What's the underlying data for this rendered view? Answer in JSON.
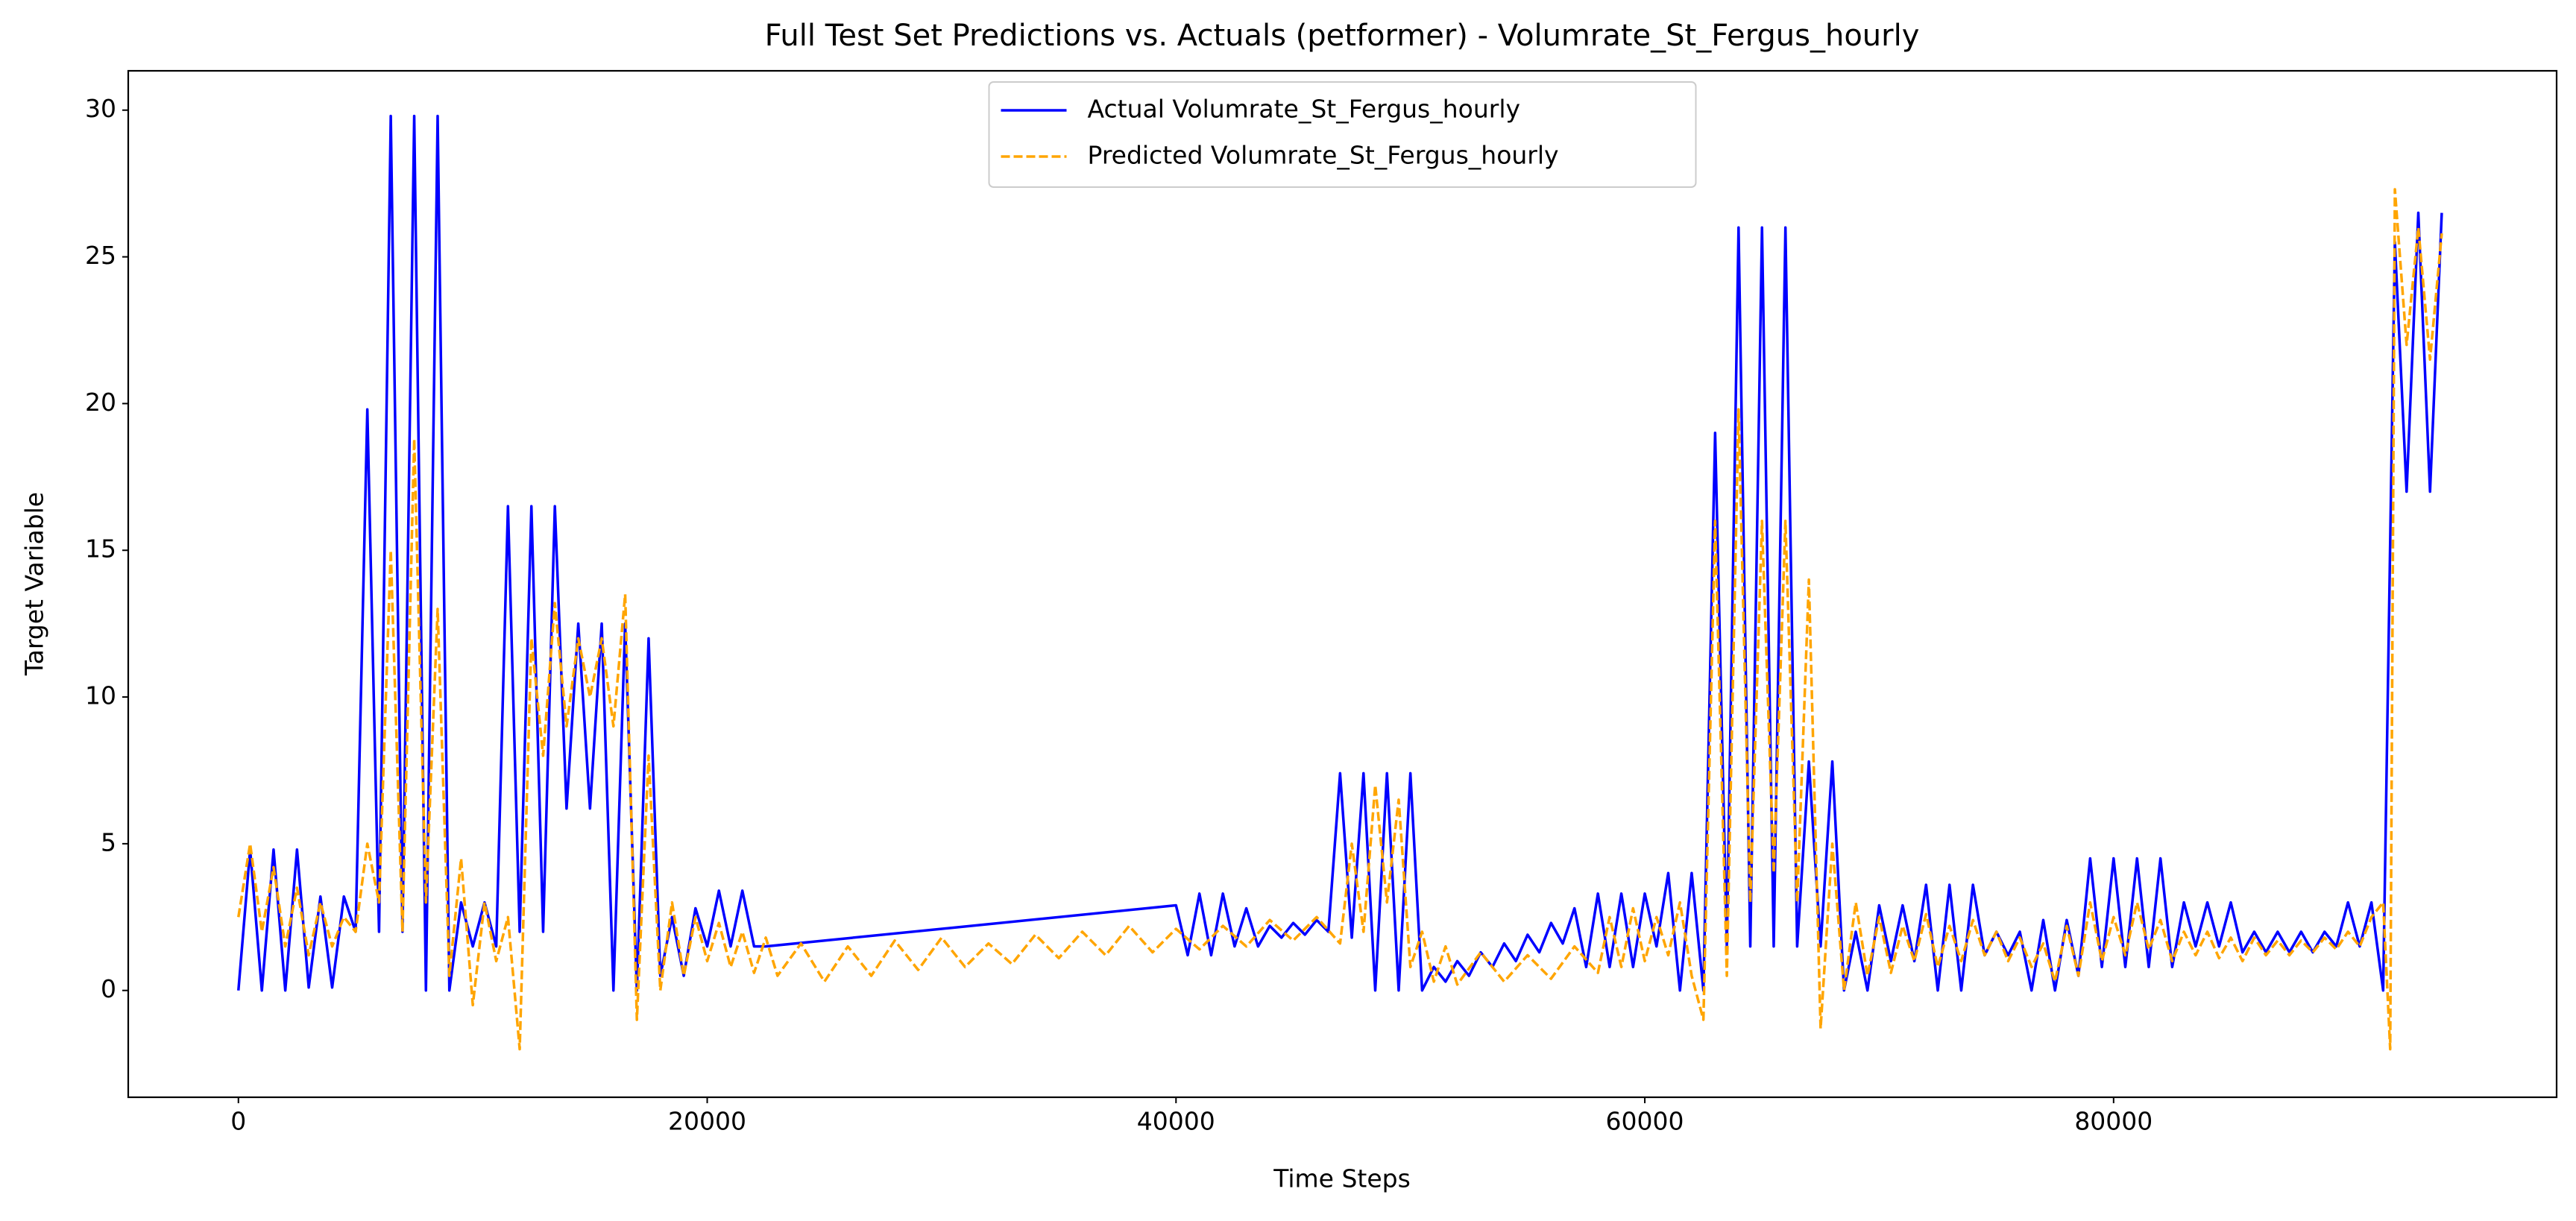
{
  "chart_data": {
    "type": "line",
    "title": "Full Test Set Predictions vs. Actuals (petformer) - Volumrate_St_Fergus_hourly",
    "xlabel": "Time Steps",
    "ylabel": "Target Variable",
    "xlim": [
      -4700,
      98900
    ],
    "ylim": [
      -3.64,
      31.34
    ],
    "xticks": [
      0,
      20000,
      40000,
      60000,
      80000
    ],
    "yticks": [
      0,
      5,
      10,
      15,
      20,
      25,
      30
    ],
    "grid": false,
    "legend": "upper center",
    "series": [
      {
        "name": "Actual Volumrate_St_Fergus_hourly",
        "color": "#0000ff",
        "style": "solid",
        "x": [
          0,
          500,
          1000,
          1500,
          2000,
          2500,
          3000,
          3500,
          4000,
          4500,
          5000,
          5500,
          6000,
          6500,
          7000,
          7500,
          8000,
          8500,
          9000,
          9500,
          10000,
          10500,
          11000,
          11500,
          12000,
          12500,
          13000,
          13500,
          14000,
          14500,
          15000,
          15500,
          16000,
          16500,
          17000,
          17500,
          18000,
          18500,
          19000,
          19500,
          20000,
          20500,
          21000,
          21500,
          22000,
          22500,
          40000,
          40500,
          41000,
          41500,
          42000,
          42500,
          43000,
          43500,
          44000,
          44500,
          45000,
          45500,
          46000,
          46500,
          47000,
          47500,
          48000,
          48500,
          49000,
          49500,
          50000,
          50500,
          51000,
          51500,
          52000,
          52500,
          53000,
          53500,
          54000,
          54500,
          55000,
          55500,
          56000,
          56500,
          57000,
          57500,
          58000,
          58500,
          59000,
          59500,
          60000,
          60500,
          61000,
          61500,
          62000,
          62500,
          63000,
          63500,
          64000,
          64500,
          65000,
          65500,
          66000,
          66500,
          67000,
          67500,
          68000,
          68500,
          69000,
          69500,
          70000,
          70500,
          71000,
          71500,
          72000,
          72500,
          73000,
          73500,
          74000,
          74500,
          75000,
          75500,
          76000,
          76500,
          77000,
          77500,
          78000,
          78500,
          79000,
          79500,
          80000,
          80500,
          81000,
          81500,
          82000,
          82500,
          83000,
          83500,
          84000,
          84500,
          85000,
          85500,
          86000,
          86500,
          87000,
          87500,
          88000,
          88500,
          89000,
          89500,
          90000,
          90500,
          91000,
          91500,
          92000,
          92500,
          93000,
          93500,
          94000
        ],
        "values": [
          0,
          4.8,
          0,
          4.8,
          0,
          4.8,
          0.1,
          3.2,
          0.1,
          3.2,
          2,
          19.8,
          2,
          29.8,
          2,
          29.8,
          0,
          29.8,
          0,
          3,
          1.5,
          3,
          1.5,
          16.5,
          2,
          16.5,
          2,
          16.5,
          6.2,
          12.5,
          6.2,
          12.5,
          0,
          12.5,
          0,
          12,
          0.5,
          2.5,
          0.5,
          2.8,
          1.5,
          3.4,
          1.5,
          3.4,
          1.5,
          1.5,
          2.9,
          1.2,
          3.3,
          1.2,
          3.3,
          1.5,
          2.8,
          1.5,
          2.2,
          1.8,
          2.3,
          1.9,
          2.4,
          2.0,
          7.4,
          1.8,
          7.4,
          0,
          7.4,
          0,
          7.4,
          0,
          0.8,
          0.3,
          1.0,
          0.5,
          1.3,
          0.8,
          1.6,
          1.0,
          1.9,
          1.3,
          2.3,
          1.6,
          2.8,
          0.8,
          3.3,
          0.8,
          3.3,
          0.8,
          3.3,
          1.5,
          4,
          0,
          4,
          0,
          19,
          1.5,
          26,
          1.5,
          26,
          1.5,
          26,
          1.5,
          7.8,
          1.5,
          7.8,
          0,
          2,
          0,
          2.9,
          1,
          2.9,
          1,
          3.6,
          0,
          3.6,
          0,
          3.6,
          1.2,
          2,
          1.2,
          2,
          0,
          2.4,
          0,
          2.4,
          0.5,
          4.5,
          0.8,
          4.5,
          0.8,
          4.5,
          0.8,
          4.5,
          0.8,
          3,
          1.5,
          3,
          1.5,
          3,
          1.3,
          2,
          1.3,
          2,
          1.3,
          2,
          1.3,
          2,
          1.5,
          3,
          1.5,
          3,
          0,
          25.5,
          17,
          26.5,
          17,
          26.5
        ]
      },
      {
        "name": "Predicted Volumrate_St_Fergus_hourly",
        "color": "#ffa500",
        "style": "dashed",
        "x": [
          0,
          500,
          1000,
          1500,
          2000,
          2500,
          3000,
          3500,
          4000,
          4500,
          5000,
          5500,
          6000,
          6500,
          7000,
          7500,
          8000,
          8500,
          9000,
          9500,
          10000,
          10500,
          11000,
          11500,
          12000,
          12500,
          13000,
          13500,
          14000,
          14500,
          15000,
          15500,
          16000,
          16500,
          17000,
          17500,
          18000,
          18500,
          19000,
          19500,
          20000,
          20500,
          21000,
          21500,
          22000,
          22500,
          23000,
          24000,
          25000,
          26000,
          27000,
          28000,
          29000,
          30000,
          31000,
          32000,
          33000,
          34000,
          35000,
          36000,
          37000,
          38000,
          39000,
          40000,
          41000,
          42000,
          43000,
          44000,
          45000,
          46000,
          47000,
          47500,
          48000,
          48500,
          49000,
          49500,
          50000,
          50500,
          51000,
          51500,
          52000,
          53000,
          54000,
          55000,
          56000,
          57000,
          58000,
          58500,
          59000,
          59500,
          60000,
          60500,
          61000,
          61500,
          62000,
          62500,
          63000,
          63500,
          64000,
          64500,
          65000,
          65500,
          66000,
          66500,
          67000,
          67500,
          68000,
          68500,
          69000,
          69500,
          70000,
          70500,
          71000,
          71500,
          72000,
          72500,
          73000,
          73500,
          74000,
          74500,
          75000,
          75500,
          76000,
          76500,
          77000,
          77500,
          78000,
          78500,
          79000,
          79500,
          80000,
          80500,
          81000,
          81500,
          82000,
          82500,
          83000,
          83500,
          84000,
          84500,
          85000,
          85500,
          86000,
          86500,
          87000,
          87500,
          88000,
          88500,
          89000,
          89500,
          90000,
          90500,
          91000,
          91500,
          91800,
          92000,
          92500,
          93000,
          93500,
          94000
        ],
        "values": [
          2.5,
          5,
          2,
          4.2,
          1.5,
          3.5,
          1.2,
          3,
          1.5,
          2.5,
          2,
          5,
          3,
          15,
          2,
          18.8,
          3,
          13,
          0.5,
          4.5,
          -0.5,
          3,
          1,
          2.5,
          -2,
          12,
          8,
          13.2,
          9,
          12,
          10,
          12,
          9,
          13.5,
          -1,
          8,
          0,
          3,
          0.5,
          2.5,
          1,
          2.3,
          0.8,
          2,
          0.6,
          1.8,
          0.5,
          1.6,
          0.3,
          1.5,
          0.5,
          1.7,
          0.7,
          1.8,
          0.8,
          1.6,
          0.9,
          1.9,
          1.1,
          2.0,
          1.2,
          2.2,
          1.3,
          2.1,
          1.4,
          2.2,
          1.5,
          2.4,
          1.7,
          2.5,
          1.6,
          5,
          2,
          7,
          3,
          6.5,
          0.8,
          2,
          0.3,
          1.5,
          0.2,
          1.3,
          0.3,
          1.2,
          0.4,
          1.5,
          0.6,
          2.5,
          0.8,
          2.8,
          1,
          2.5,
          1.2,
          3,
          0.5,
          -1,
          16,
          0.5,
          19.8,
          3,
          16,
          4,
          16,
          3,
          14,
          -1.3,
          5,
          0,
          3,
          0.5,
          2.5,
          0.6,
          2.2,
          1,
          2.6,
          0.8,
          2.2,
          1,
          2.4,
          1.2,
          2,
          1,
          1.8,
          0.8,
          1.6,
          0.3,
          2.2,
          0.5,
          3,
          1,
          2.5,
          1.2,
          3,
          1.4,
          2.4,
          1,
          2,
          1.2,
          2,
          1.1,
          1.8,
          1,
          1.8,
          1.2,
          1.7,
          1.2,
          1.7,
          1.3,
          1.8,
          1.4,
          2,
          1.5,
          2.5,
          3,
          -2,
          27.3,
          22,
          26,
          21.5,
          25.8
        ]
      }
    ]
  }
}
